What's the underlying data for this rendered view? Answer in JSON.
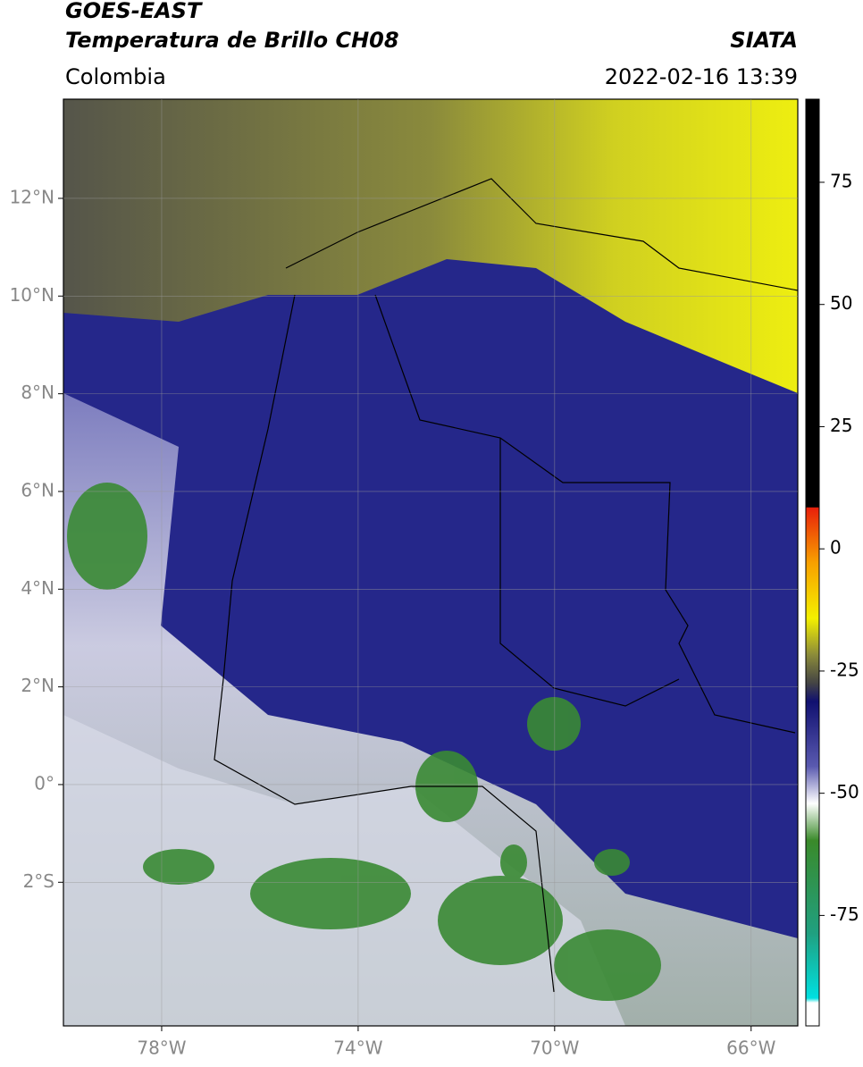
{
  "header": {
    "title": "GOES-EAST",
    "subtitle": "Temperatura de Brillo CH08",
    "source": "SIATA",
    "region": "Colombia",
    "datetime": "2022-02-16 13:39"
  },
  "map": {
    "xlim": [
      -80,
      -65.05
    ],
    "ylim": [
      -4.94,
      14.03
    ],
    "xticks": [
      {
        "value": -78,
        "label": "78°W"
      },
      {
        "value": -74,
        "label": "74°W"
      },
      {
        "value": -70,
        "label": "70°W"
      },
      {
        "value": -66,
        "label": "66°W"
      }
    ],
    "yticks": [
      {
        "value": 12,
        "label": "12°N"
      },
      {
        "value": 10,
        "label": "10°N"
      },
      {
        "value": 8,
        "label": "8°N"
      },
      {
        "value": 6,
        "label": "6°N"
      },
      {
        "value": 4,
        "label": "4°N"
      },
      {
        "value": 2,
        "label": "2°N"
      },
      {
        "value": 0,
        "label": "0°"
      },
      {
        "value": -2,
        "label": "2°S"
      }
    ]
  },
  "colorbar": {
    "lim": [
      -97.6,
      92
    ],
    "ticks": [
      75,
      50,
      25,
      0,
      -25,
      -50,
      -75
    ]
  }
}
